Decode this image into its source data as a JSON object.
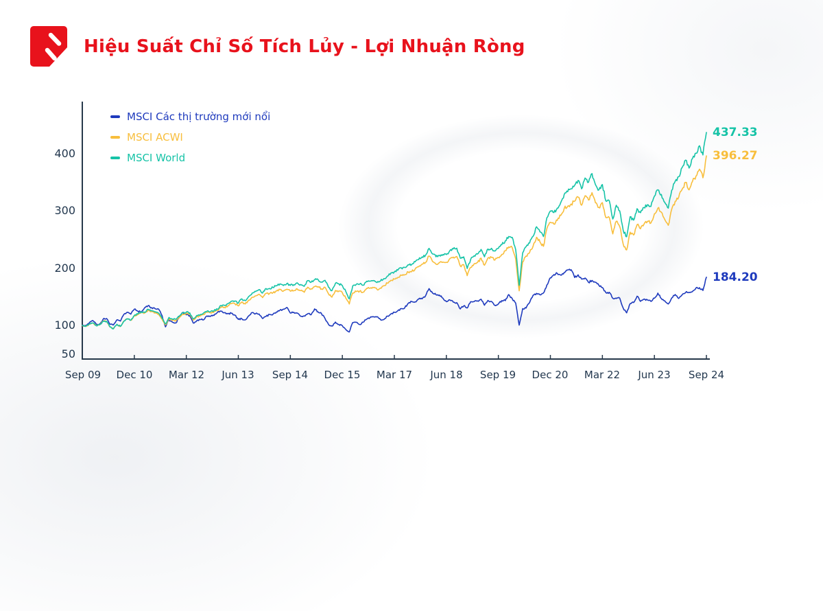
{
  "header": {
    "title": "Hiệu Suất Chỉ Số Tích Lủy - Lợi Nhuận Ròng"
  },
  "colors": {
    "brand_red": "#e8121c",
    "axis": "#26384a",
    "tick_text": "#22374e",
    "em_blue": "#1e3abd",
    "acwi_yellow": "#f8be3c",
    "world_teal": "#16c3a7"
  },
  "chart_data": {
    "type": "line",
    "title": "Hiệu Suất Chỉ Số Tích Lủy - Lợi Nhuận Ròng",
    "grid": false,
    "legend_position": "top-left",
    "x_unit": "months (Sep 2009 – Sep 2024, monthly samples)",
    "x_tick_labels": [
      "Sep 09",
      "Dec 10",
      "Mar 12",
      "Jun 13",
      "Sep 14",
      "Dec 15",
      "Mar 17",
      "Jun 18",
      "Sep 19",
      "Dec 20",
      "Mar 22",
      "Jun 23",
      "Sep 24"
    ],
    "y_ticks": [
      "400",
      "300",
      "200",
      "100",
      "50"
    ],
    "y_tick_values": [
      400,
      300,
      200,
      100,
      50
    ],
    "ylim": [
      41,
      472
    ],
    "base_value": 100,
    "series": [
      {
        "name": "MSCI Các thị trường mới nổi",
        "color": "#1e3abd",
        "end_label": "184.20",
        "end_value": 184.2,
        "values": [
          100,
          100.1,
          104.2,
          108.5,
          102.2,
          102.5,
          110.7,
          112,
          101.8,
          100.9,
          109.9,
          107.6,
          119.4,
          122.9,
          119.7,
          128.3,
          125,
          123.8,
          131,
          134.7,
          131.1,
          129.2,
          128.6,
          117.2,
          97.5,
          110,
          105.5,
          104.2,
          115.8,
          122.7,
          118.6,
          117.2,
          104.1,
          108.1,
          110.2,
          109.9,
          116.6,
          115.9,
          117.4,
          123.2,
          124.9,
          122.3,
          120.3,
          121.2,
          118.1,
          110.5,
          111.6,
          109.6,
          116.7,
          122.4,
          120.5,
          119.9,
          112,
          115.7,
          119.2,
          119.6,
          123.5,
          126.7,
          128.5,
          131.4,
          121.6,
          122.9,
          121.6,
          116,
          116.6,
          120.4,
          118.7,
          128.8,
          123.6,
          120.4,
          112.1,
          101.9,
          98.8,
          105.9,
          101.7,
          99.4,
          92.9,
          88.5,
          104.9,
          105.5,
          101.6,
          105.6,
          110.9,
          113.7,
          115.1,
          115.4,
          110.1,
          110.3,
          116.3,
          120,
          123,
          125.7,
          129.4,
          130.7,
          138.6,
          141.7,
          141.1,
          146.1,
          146.4,
          151.7,
          164.3,
          156.7,
          153.7,
          153,
          147.6,
          141.5,
          144.6,
          140.7,
          139.9,
          128.8,
          134.1,
          130.5,
          141.4,
          141.7,
          142.9,
          145.9,
          135.3,
          143.7,
          141.9,
          135,
          137.6,
          143.4,
          143.3,
          153.9,
          146.7,
          139,
          100.5,
          129.4,
          130.4,
          140,
          152.6,
          156,
          153.5,
          156.6,
          170.7,
          183.3,
          188.8,
          190.7,
          187.8,
          192.5,
          197,
          197.3,
          183.7,
          188.5,
          181,
          182.8,
          175.3,
          178.6,
          175.2,
          170,
          166.2,
          157.2,
          157.9,
          147.4,
          147,
          147.6,
          130.3,
          122,
          138,
          140,
          151,
          142,
          146,
          144.5,
          142,
          147.5,
          156.5,
          147,
          143,
          137.5,
          148,
          154,
          147,
          153.5,
          157.5,
          158,
          159.5,
          165.5,
          166,
          161,
          184.2
        ]
      },
      {
        "name": "MSCI ACWI",
        "color": "#f8be3c",
        "end_label": "396.27",
        "end_value": 396.27,
        "values": [
          100,
          98.3,
          102.5,
          104.3,
          99.7,
          101,
          107.2,
          107.2,
          97.2,
          94.1,
          101.8,
          98.1,
          107.3,
          111.3,
          108.9,
          116.9,
          119.3,
          123.1,
          121.8,
          126.9,
          124.5,
          122.2,
          119.7,
          110.8,
          100.9,
          111.7,
          108.6,
          108.3,
          113.9,
          119.4,
          120.9,
          119.6,
          109.4,
          115,
          116.5,
          119.5,
          122.9,
          122,
          123.5,
          125.8,
          131.9,
          131.6,
          134.2,
          138,
          138,
          134.1,
          140.9,
          137.5,
          144.2,
          149.3,
          151.6,
          154.4,
          148.6,
          155.8,
          155.7,
          157.1,
          160.1,
          162.8,
          160,
          163.2,
          159.9,
          160.9,
          163.7,
          160.9,
          157.8,
          166.9,
          164.1,
          167.7,
          167.8,
          163.8,
          166.6,
          155.3,
          149.4,
          161.1,
          160.1,
          157.1,
          147.7,
          137.5,
          156.7,
          159.2,
          159.9,
          158.1,
          164.8,
          165,
          166,
          162.9,
          165.4,
          169.5,
          173.8,
          178.8,
          181,
          183.9,
          188,
          188.8,
          193.5,
          194,
          198.5,
          202.5,
          207.1,
          210.1,
          221.2,
          211.9,
          207.1,
          209.5,
          210.7,
          210.4,
          216.8,
          219.4,
          220.5,
          204.1,
          206.2,
          187,
          201.4,
          207.5,
          210.1,
          217.6,
          205.3,
          218,
          218.9,
          214.2,
          218.7,
          224.2,
          230.4,
          237.3,
          235.9,
          216.3,
          160.5,
          211.1,
          221.3,
          227.3,
          238.2,
          254.1,
          245.9,
          238.2,
          269.2,
          280.3,
          277,
          283.6,
          292.3,
          304.7,
          308.3,
          312.2,
          317.1,
          324.3,
          310.1,
          326.6,
          319.1,
          332.1,
          314.5,
          306.2,
          314.6,
          288.5,
          288.7,
          260,
          282,
          272.8,
          242,
          232,
          263,
          258,
          276,
          269,
          277,
          282,
          279,
          295,
          305,
          298,
          285,
          275,
          303,
          317,
          324,
          338,
          350,
          337,
          352,
          361,
          373,
          358,
          396.27
        ]
      },
      {
        "name": "MSCI World",
        "color": "#16c3a7",
        "end_label": "437.33",
        "end_value": 437.33,
        "values": [
          100,
          98.2,
          102.3,
          104.1,
          99.7,
          101.1,
          107.3,
          107.3,
          97.4,
          94.3,
          102,
          98.3,
          107.5,
          111.5,
          109.2,
          117.3,
          119.9,
          123.9,
          122.8,
          128.1,
          125.9,
          123.8,
          121.4,
          112.6,
          102.7,
          113.9,
          110.9,
          110.7,
          116.3,
          121.9,
          123.4,
          122,
          111.6,
          117.3,
          118.8,
          121.8,
          125.2,
          124.3,
          125.9,
          128.2,
          134.8,
          134.9,
          137.9,
          142.2,
          142.6,
          139,
          146.4,
          143.3,
          150.7,
          156.5,
          159.3,
          162.7,
          156.7,
          164.5,
          164.6,
          166.2,
          169.5,
          172.6,
          169.7,
          173.3,
          170,
          171.2,
          174.4,
          171.5,
          168.4,
          178.3,
          175.5,
          179.6,
          179.9,
          175.7,
          178.9,
          167,
          160.8,
          173.6,
          172.7,
          169.6,
          159.4,
          146.5,
          169,
          171.6,
          172.2,
          170.2,
          177.3,
          177.4,
          178.4,
          175,
          177.6,
          181.9,
          186.3,
          191.5,
          193.6,
          196.5,
          200.7,
          201.4,
          206.2,
          206.5,
          211.1,
          215.1,
          219.8,
          222.8,
          234.7,
          224.9,
          220,
          222.6,
          224,
          223.8,
          230.8,
          233.7,
          235,
          217.6,
          219.9,
          199.5,
          215.1,
          221.7,
          224.7,
          232.9,
          219.9,
          233.6,
          234.8,
          229.9,
          234.9,
          241,
          247.8,
          255.4,
          253.8,
          232.6,
          170,
          226.8,
          237.7,
          244,
          255.6,
          272.5,
          263.6,
          255.3,
          288.3,
          300.1,
          297.2,
          305,
          315.1,
          329.2,
          333.8,
          338.8,
          344.9,
          353.5,
          338.8,
          357.7,
          350.2,
          365.4,
          346.1,
          337,
          346.3,
          317.6,
          317.8,
          286,
          310,
          300.3,
          266,
          255,
          290,
          284,
          304,
          297,
          306,
          311,
          308,
          326,
          337,
          329,
          315,
          305,
          336,
          352,
          360,
          376,
          389,
          375,
          392,
          401,
          414,
          398,
          437.33
        ]
      }
    ]
  }
}
